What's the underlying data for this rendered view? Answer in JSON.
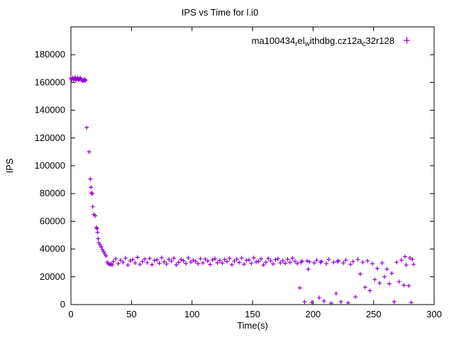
{
  "figure": {
    "background": "#ffffff",
    "border_color": "#000000"
  },
  "chart_data": {
    "type": "scatter",
    "title": "IPS vs Time for l.i0",
    "xlabel": "Time(s)",
    "ylabel": "IPS",
    "xlim": [
      0,
      300
    ],
    "ylim": [
      0,
      200000
    ],
    "xticks": [
      0,
      50,
      100,
      150,
      200,
      250,
      300
    ],
    "yticks": [
      0,
      20000,
      40000,
      60000,
      80000,
      100000,
      120000,
      140000,
      160000,
      180000
    ],
    "grid": false,
    "marker": "plus",
    "marker_color": "#9400d3",
    "legend": {
      "position": "top-right",
      "series_name": "ma100434relwithdbg.cz12ac32r128",
      "label_segments": [
        {
          "text": "ma100434",
          "sub": false
        },
        {
          "text": "r",
          "sub": true
        },
        {
          "text": "el",
          "sub": false
        },
        {
          "text": "w",
          "sub": true
        },
        {
          "text": "ithdbg.cz12a",
          "sub": false
        },
        {
          "text": "c",
          "sub": true
        },
        {
          "text": "32r128",
          "sub": false
        }
      ]
    },
    "series": [
      {
        "name": "ma100434relwithdbg.cz12ac32r128",
        "points": [
          [
            0,
            163000
          ],
          [
            0.7,
            162200
          ],
          [
            1.4,
            163400
          ],
          [
            2.1,
            161800
          ],
          [
            2.8,
            162900
          ],
          [
            3.5,
            163600
          ],
          [
            4.2,
            161500
          ],
          [
            4.9,
            162600
          ],
          [
            5.6,
            163200
          ],
          [
            6.3,
            161900
          ],
          [
            7,
            162400
          ],
          [
            7.7,
            163500
          ],
          [
            8.4,
            161700
          ],
          [
            9.1,
            162100
          ],
          [
            9.8,
            160900
          ],
          [
            10.5,
            161600
          ],
          [
            11,
            162300
          ],
          [
            11.5,
            161200
          ],
          [
            12,
            161800
          ],
          [
            13,
            127500
          ],
          [
            15,
            110000
          ],
          [
            16,
            90500
          ],
          [
            16.5,
            84500
          ],
          [
            17,
            80500
          ],
          [
            17.5,
            79800
          ],
          [
            18,
            70500
          ],
          [
            19,
            65000
          ],
          [
            20,
            64000
          ],
          [
            21,
            55500
          ],
          [
            21.5,
            54800
          ],
          [
            22,
            52000
          ],
          [
            22.5,
            47500
          ],
          [
            23,
            44500
          ],
          [
            24,
            43000
          ],
          [
            25,
            41500
          ],
          [
            26,
            39500
          ],
          [
            27,
            38000
          ],
          [
            28,
            36500
          ],
          [
            29,
            35000
          ],
          [
            30,
            30500
          ],
          [
            31,
            29500
          ],
          [
            32,
            28800
          ],
          [
            33,
            29300
          ],
          [
            34,
            28500
          ],
          [
            35,
            31000
          ],
          [
            37,
            33000
          ],
          [
            39,
            29500
          ],
          [
            41,
            32000
          ],
          [
            43,
            30500
          ],
          [
            45,
            33500
          ],
          [
            47,
            28500
          ],
          [
            49,
            31500
          ],
          [
            51,
            32500
          ],
          [
            53,
            30000
          ],
          [
            55,
            34000
          ],
          [
            57,
            29000
          ],
          [
            59,
            31000
          ],
          [
            61,
            32800
          ],
          [
            63,
            30200
          ],
          [
            65,
            33200
          ],
          [
            67,
            28800
          ],
          [
            69,
            31800
          ],
          [
            71,
            32200
          ],
          [
            73,
            29800
          ],
          [
            75,
            33800
          ],
          [
            77,
            30800
          ],
          [
            79,
            29200
          ],
          [
            81,
            32600
          ],
          [
            83,
            31200
          ],
          [
            85,
            33400
          ],
          [
            87,
            28600
          ],
          [
            89,
            30400
          ],
          [
            91,
            32400
          ],
          [
            93,
            31600
          ],
          [
            95,
            29600
          ],
          [
            97,
            33600
          ],
          [
            99,
            30600
          ],
          [
            101,
            32000
          ],
          [
            103,
            31000
          ],
          [
            105,
            29400
          ],
          [
            107,
            33000
          ],
          [
            109,
            30000
          ],
          [
            111,
            32800
          ],
          [
            113,
            31400
          ],
          [
            115,
            28900
          ],
          [
            117,
            32200
          ],
          [
            119,
            33100
          ],
          [
            121,
            30100
          ],
          [
            123,
            31700
          ],
          [
            125,
            29900
          ],
          [
            127,
            32500
          ],
          [
            129,
            30900
          ],
          [
            131,
            33300
          ],
          [
            133,
            28700
          ],
          [
            135,
            31300
          ],
          [
            137,
            32700
          ],
          [
            139,
            30300
          ],
          [
            141,
            33500
          ],
          [
            143,
            29100
          ],
          [
            145,
            31900
          ],
          [
            147,
            32100
          ],
          [
            149,
            29700
          ],
          [
            151,
            33700
          ],
          [
            153,
            30700
          ],
          [
            155,
            31100
          ],
          [
            157,
            32900
          ],
          [
            159,
            28500
          ],
          [
            161,
            30500
          ],
          [
            163,
            33200
          ],
          [
            165,
            31500
          ],
          [
            167,
            29300
          ],
          [
            169,
            32300
          ],
          [
            171,
            33000
          ],
          [
            173,
            30000
          ],
          [
            175,
            31600
          ],
          [
            177,
            29800
          ],
          [
            179,
            32600
          ],
          [
            181,
            30400
          ],
          [
            183,
            33400
          ],
          [
            185,
            31200
          ],
          [
            187,
            29600
          ],
          [
            189,
            12000
          ],
          [
            190,
            30500
          ],
          [
            191,
            31200
          ],
          [
            193,
            2000
          ],
          [
            195,
            31500
          ],
          [
            196,
            25500
          ],
          [
            197,
            30800
          ],
          [
            199,
            1500
          ],
          [
            201,
            30000
          ],
          [
            203,
            32000
          ],
          [
            205,
            5000
          ],
          [
            206,
            30500
          ],
          [
            207,
            31000
          ],
          [
            209,
            2500
          ],
          [
            211,
            29500
          ],
          [
            213,
            32500
          ],
          [
            215,
            1000
          ],
          [
            217,
            30500
          ],
          [
            219,
            8000
          ],
          [
            220,
            31000
          ],
          [
            221,
            31500
          ],
          [
            223,
            2000
          ],
          [
            225,
            30000
          ],
          [
            227,
            32000
          ],
          [
            229,
            1200
          ],
          [
            231,
            29000
          ],
          [
            233,
            31000
          ],
          [
            235,
            5500
          ],
          [
            237,
            32500
          ],
          [
            239,
            22000
          ],
          [
            241,
            30500
          ],
          [
            243,
            12500
          ],
          [
            245,
            31500
          ],
          [
            247,
            10000
          ],
          [
            249,
            29500
          ],
          [
            251,
            18000
          ],
          [
            253,
            26000
          ],
          [
            255,
            15500
          ],
          [
            257,
            30000
          ],
          [
            259,
            20000
          ],
          [
            261,
            25500
          ],
          [
            263,
            15000
          ],
          [
            265,
            22500
          ],
          [
            267,
            2000
          ],
          [
            269,
            30500
          ],
          [
            271,
            16500
          ],
          [
            273,
            32000
          ],
          [
            275,
            14000
          ],
          [
            276,
            34500
          ],
          [
            277,
            28500
          ],
          [
            279,
            13500
          ],
          [
            280,
            33500
          ],
          [
            281,
            1500
          ],
          [
            282,
            32500
          ],
          [
            283,
            29000
          ]
        ]
      }
    ]
  }
}
